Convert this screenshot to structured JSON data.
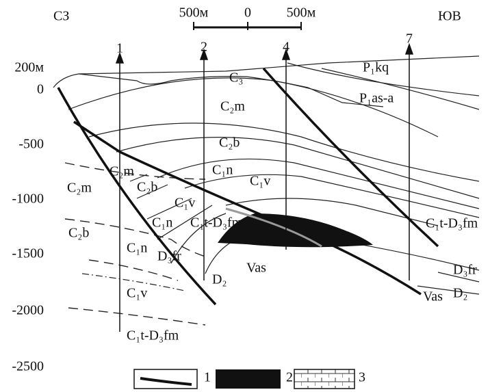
{
  "header": {
    "left": "СЗ",
    "right": "ЮВ"
  },
  "scale": {
    "left": "500м",
    "center": "0",
    "right": "500м"
  },
  "wells": [
    "1",
    "2",
    "4",
    "7"
  ],
  "depth_labels": [
    "200м",
    "0",
    "-500",
    "-1000",
    "-1500",
    "-2000",
    "-2500"
  ],
  "formations": [
    "C₃",
    "P₁kq",
    "P₁as-a",
    "C₂m",
    "C₂b",
    "C₁n",
    "C₁v",
    "C₂m",
    "C₂m",
    "C₂b",
    "C₁v",
    "C₁n",
    "C₁t-D₃fm",
    "C₂b",
    "C₁n",
    "D₃fr",
    "Vas",
    "D₂",
    "C₁v",
    "C₁t-D₃fm",
    "C₁t-D₃fm",
    "D₃fr",
    "Vas",
    "D₂"
  ],
  "legend": [
    "1",
    "2",
    "3"
  ]
}
